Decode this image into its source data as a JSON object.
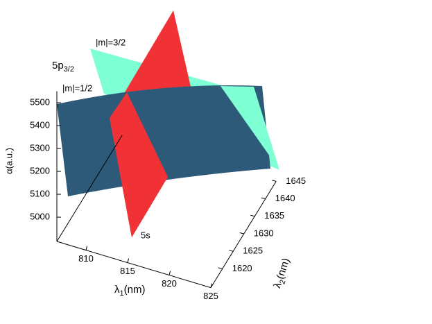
{
  "chart_data": {
    "type": "surface3d",
    "xlabel": {
      "text": "λ",
      "sub": "1",
      "unit": "(nm)"
    },
    "ylabel": {
      "text": "λ",
      "sub": "2",
      "unit": "(nm)"
    },
    "zlabel": "α(a.u.)",
    "xlim": [
      806.5,
      825
    ],
    "xticks": [
      810,
      815,
      820,
      825
    ],
    "ylim": [
      1614.6,
      1645
    ],
    "yticks": [
      1620,
      1625,
      1630,
      1635,
      1640,
      1645
    ],
    "zlim": [
      4894,
      5550
    ],
    "zticks": [
      5000,
      5100,
      5200,
      5300,
      5400,
      5500
    ],
    "series": [
      {
        "name": "5s",
        "color": "#f03236"
      },
      {
        "name": {
          "text": "5p",
          "sub": "3/2"
        },
        "color": "#7fffd4"
      },
      {
        "name": "|m|=3/2",
        "color": "#7fffd4"
      },
      {
        "name": "|m|=1/2",
        "color": "#2e5a7a"
      }
    ]
  }
}
